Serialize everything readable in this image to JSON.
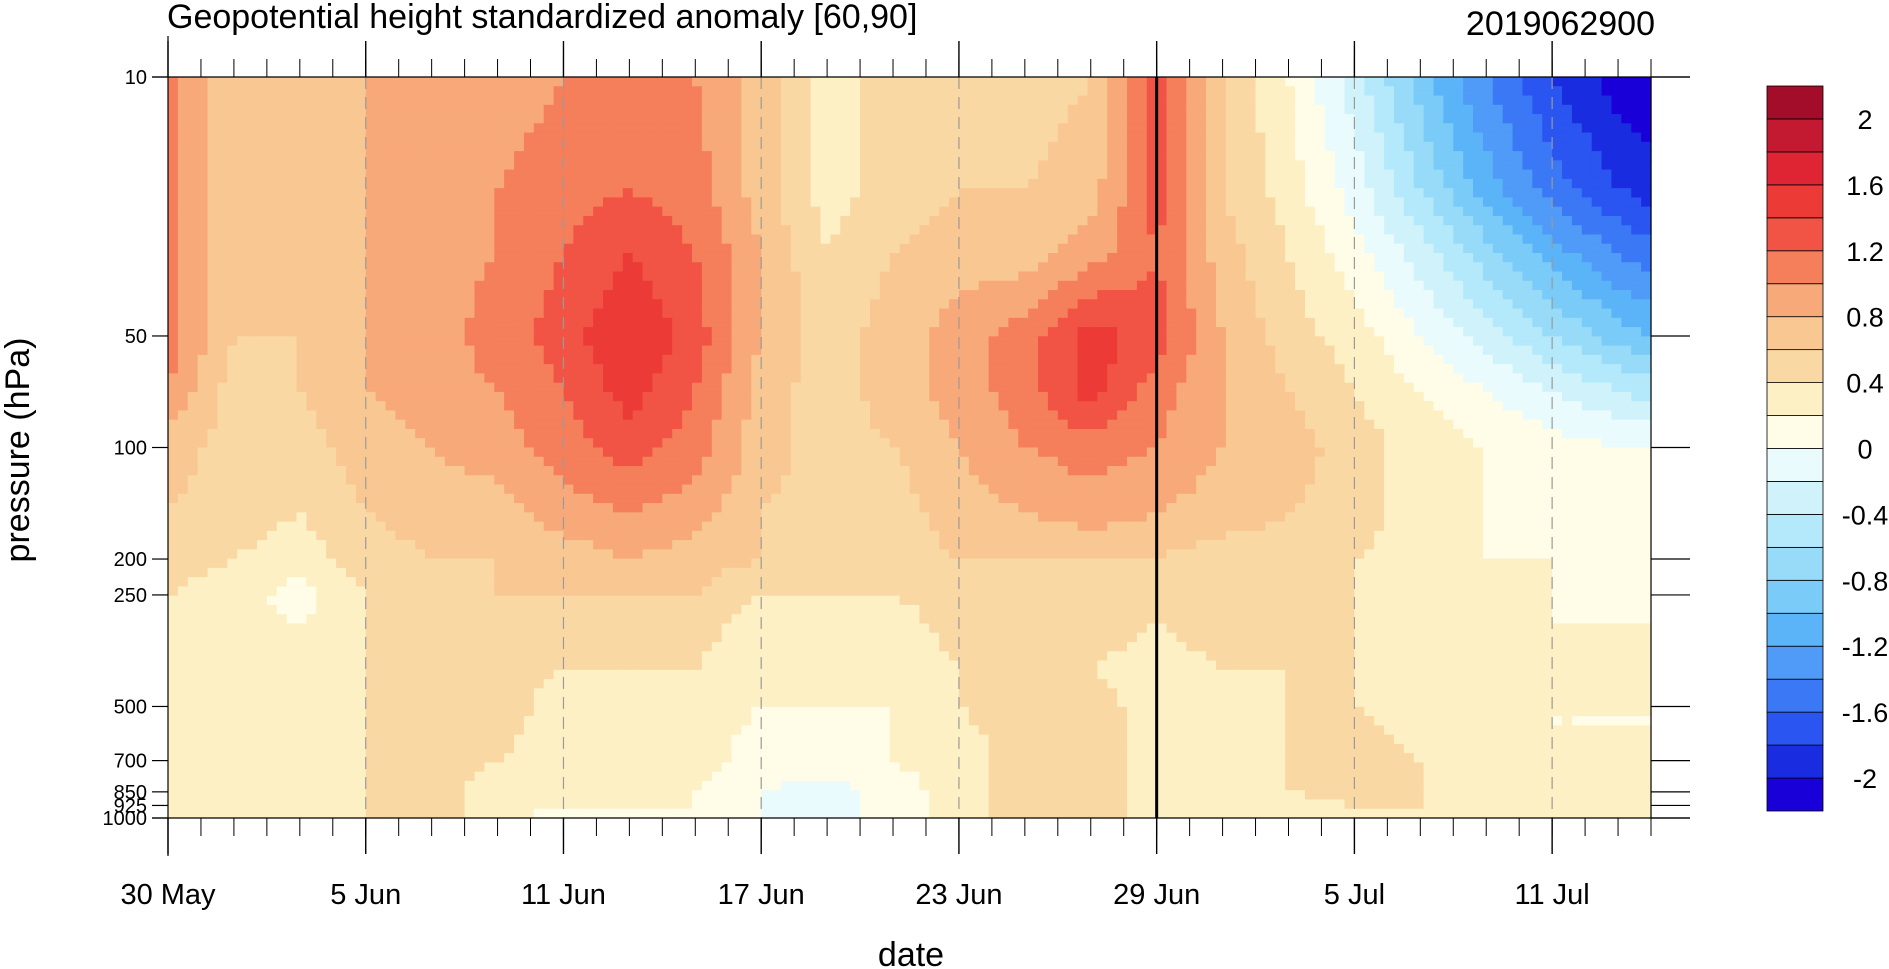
{
  "chart_data": {
    "type": "heatmap",
    "title": "Geopotential height standardized anomaly [60,90]",
    "right_title": "2019062900",
    "xlabel": "date",
    "ylabel": "pressure (hPa)",
    "x_tick_labels": [
      "30 May",
      "5 Jun",
      "11 Jun",
      "17 Jun",
      "23 Jun",
      "29 Jun",
      "5 Jul",
      "11 Jul"
    ],
    "x_tick_dates": [
      "2019-05-30",
      "2019-06-05",
      "2019-06-11",
      "2019-06-17",
      "2019-06-23",
      "2019-06-29",
      "2019-07-05",
      "2019-07-11"
    ],
    "x_range": [
      "2019-05-30",
      "2019-07-14"
    ],
    "y_tick_labels": [
      "10",
      "50",
      "100",
      "200",
      "250",
      "500",
      "700",
      "850",
      "925",
      "1000"
    ],
    "y_tick_values": [
      10,
      50,
      100,
      200,
      250,
      500,
      700,
      850,
      925,
      1000
    ],
    "y_range": [
      10,
      1000
    ],
    "y_scale": "log",
    "y_inverted": true,
    "marker_date": "2019-06-29",
    "dates": [
      "2019-05-30",
      "2019-06-01",
      "2019-06-03",
      "2019-06-05",
      "2019-06-07",
      "2019-06-09",
      "2019-06-11",
      "2019-06-13",
      "2019-06-15",
      "2019-06-17",
      "2019-06-19",
      "2019-06-21",
      "2019-06-23",
      "2019-06-25",
      "2019-06-27",
      "2019-06-29",
      "2019-07-01",
      "2019-07-03",
      "2019-07-05",
      "2019-07-07",
      "2019-07-09",
      "2019-07-11",
      "2019-07-13",
      "2019-07-14"
    ],
    "levels": [
      10,
      20,
      30,
      50,
      70,
      100,
      150,
      200,
      250,
      300,
      400,
      500,
      700,
      850,
      925,
      1000
    ],
    "values": [
      [
        1.1,
        0.6,
        0.6,
        0.8,
        0.9,
        0.9,
        1.0,
        1.1,
        1.0,
        0.7,
        0.3,
        0.5,
        0.6,
        0.5,
        0.6,
        1.3,
        0.6,
        0.2,
        -0.3,
        -0.9,
        -1.4,
        -1.8,
        -2.1,
        -2.2
      ],
      [
        1.1,
        0.6,
        0.6,
        0.8,
        0.9,
        1.0,
        1.1,
        1.2,
        1.1,
        0.7,
        0.3,
        0.5,
        0.6,
        0.6,
        0.7,
        1.3,
        0.6,
        0.3,
        -0.1,
        -0.6,
        -1.1,
        -1.5,
        -1.8,
        -1.9
      ],
      [
        1.1,
        0.6,
        0.6,
        0.8,
        0.9,
        1.0,
        1.2,
        1.4,
        1.2,
        0.8,
        0.4,
        0.6,
        0.7,
        0.7,
        0.9,
        1.2,
        0.7,
        0.4,
        0.1,
        -0.3,
        -0.7,
        -1.1,
        -1.4,
        -1.5
      ],
      [
        1.1,
        0.6,
        0.6,
        0.8,
        0.9,
        1.1,
        1.3,
        1.6,
        1.3,
        0.8,
        0.5,
        0.7,
        0.9,
        1.1,
        1.5,
        1.3,
        0.8,
        0.5,
        0.3,
        0.0,
        -0.3,
        -0.6,
        -0.9,
        -1.0
      ],
      [
        1.0,
        0.5,
        0.6,
        0.8,
        0.9,
        1.0,
        1.2,
        1.5,
        1.2,
        0.7,
        0.5,
        0.7,
        0.9,
        1.1,
        1.5,
        1.1,
        0.8,
        0.6,
        0.4,
        0.2,
        0.0,
        -0.2,
        -0.4,
        -0.5
      ],
      [
        0.7,
        0.5,
        0.5,
        0.7,
        0.8,
        0.9,
        1.1,
        1.3,
        1.1,
        0.7,
        0.5,
        0.6,
        0.8,
        1.0,
        1.1,
        1.0,
        0.8,
        0.7,
        0.5,
        0.3,
        0.2,
        0.1,
        0.0,
        0.0
      ],
      [
        0.6,
        0.5,
        0.4,
        0.6,
        0.7,
        0.7,
        0.9,
        1.0,
        0.9,
        0.6,
        0.5,
        0.5,
        0.7,
        0.8,
        0.9,
        0.8,
        0.7,
        0.6,
        0.5,
        0.3,
        0.2,
        0.1,
        0.1,
        0.1
      ],
      [
        0.5,
        0.4,
        0.3,
        0.5,
        0.6,
        0.6,
        0.7,
        0.8,
        0.7,
        0.6,
        0.5,
        0.5,
        0.6,
        0.6,
        0.6,
        0.6,
        0.5,
        0.5,
        0.4,
        0.3,
        0.2,
        0.2,
        0.1,
        0.1
      ],
      [
        0.4,
        0.3,
        0.1,
        0.4,
        0.5,
        0.6,
        0.6,
        0.6,
        0.6,
        0.4,
        0.4,
        0.4,
        0.5,
        0.5,
        0.5,
        0.5,
        0.5,
        0.4,
        0.4,
        0.3,
        0.2,
        0.2,
        0.1,
        0.1
      ],
      [
        0.4,
        0.3,
        0.2,
        0.4,
        0.5,
        0.5,
        0.5,
        0.5,
        0.5,
        0.3,
        0.3,
        0.3,
        0.5,
        0.5,
        0.5,
        0.4,
        0.5,
        0.4,
        0.4,
        0.3,
        0.2,
        0.2,
        0.2,
        0.2
      ],
      [
        0.3,
        0.3,
        0.3,
        0.4,
        0.5,
        0.5,
        0.4,
        0.4,
        0.4,
        0.2,
        0.2,
        0.2,
        0.4,
        0.5,
        0.4,
        0.3,
        0.4,
        0.4,
        0.4,
        0.3,
        0.3,
        0.2,
        0.2,
        0.2
      ],
      [
        0.3,
        0.3,
        0.3,
        0.4,
        0.5,
        0.5,
        0.3,
        0.3,
        0.3,
        0.2,
        0.2,
        0.2,
        0.4,
        0.5,
        0.5,
        0.3,
        0.3,
        0.4,
        0.4,
        0.3,
        0.3,
        0.2,
        0.2,
        0.2
      ],
      [
        0.3,
        0.3,
        0.3,
        0.4,
        0.5,
        0.4,
        0.3,
        0.3,
        0.3,
        0.1,
        0.1,
        0.2,
        0.3,
        0.5,
        0.5,
        0.3,
        0.3,
        0.4,
        0.5,
        0.4,
        0.3,
        0.2,
        0.2,
        0.2
      ],
      [
        0.3,
        0.3,
        0.3,
        0.4,
        0.5,
        0.3,
        0.2,
        0.3,
        0.2,
        0.0,
        -0.1,
        0.1,
        0.3,
        0.5,
        0.5,
        0.3,
        0.3,
        0.4,
        0.5,
        0.4,
        0.3,
        0.2,
        0.2,
        0.2
      ],
      [
        0.3,
        0.3,
        0.3,
        0.4,
        0.5,
        0.3,
        0.2,
        0.2,
        0.2,
        0.0,
        -0.1,
        0.1,
        0.3,
        0.5,
        0.5,
        0.3,
        0.3,
        0.3,
        0.4,
        0.4,
        0.3,
        0.2,
        0.2,
        0.2
      ],
      [
        0.3,
        0.3,
        0.3,
        0.4,
        0.5,
        0.3,
        0.1,
        0.1,
        0.2,
        0.0,
        -0.1,
        0.1,
        0.3,
        0.5,
        0.5,
        0.3,
        0.3,
        0.3,
        0.3,
        0.3,
        0.2,
        0.2,
        0.2,
        0.2
      ]
    ],
    "contour_levels": [
      -2.2,
      -2.0,
      -1.8,
      -1.6,
      -1.4,
      -1.2,
      -1.0,
      -0.8,
      -0.6,
      -0.4,
      -0.2,
      0.0,
      0.2,
      0.4,
      0.6,
      0.8,
      1.0,
      1.2,
      1.4,
      1.6,
      1.8,
      2.0,
      2.2
    ],
    "colorbar_labels": [
      "2",
      "1.6",
      "1.2",
      "0.8",
      "0.4",
      "0",
      "-0.4",
      "-0.8",
      "-1.2",
      "-1.6",
      "-2"
    ],
    "colorbar_values": [
      2,
      1.6,
      1.2,
      0.8,
      0.4,
      0,
      -0.4,
      -0.8,
      -1.2,
      -1.6,
      -2
    ],
    "colors": [
      "#1a00d8",
      "#1a2ce0",
      "#2a55f0",
      "#3a78f5",
      "#4f9bf7",
      "#5bb4f8",
      "#7acbf8",
      "#97dbf9",
      "#b3e9fb",
      "#d0f3fb",
      "#eafbfd",
      "#fffce8",
      "#fcf0c4",
      "#fad8a4",
      "#f9c892",
      "#f8a97a",
      "#f57f5a",
      "#f15444",
      "#ec3a37",
      "#df2434",
      "#c31a31",
      "#a30d2a"
    ]
  }
}
